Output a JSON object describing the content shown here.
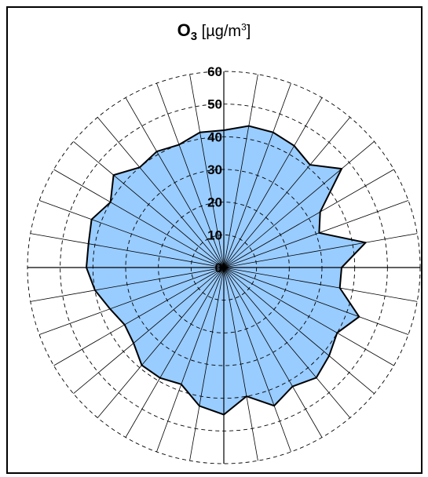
{
  "chart_data": {
    "type": "radar",
    "title": {
      "pollutant": "O",
      "subscript": "3",
      "unit_prefix": "[µg/m",
      "unit_power": "3",
      "unit_suffix": "]"
    },
    "rlim": [
      0,
      60
    ],
    "r_ticks": [
      0,
      10,
      20,
      30,
      40,
      50,
      60
    ],
    "tick_labels": [
      "0",
      "10",
      "20",
      "30",
      "40",
      "50",
      "60"
    ],
    "directions": 36,
    "grid": "dashed-rings",
    "values": [
      42,
      44,
      44,
      43,
      41,
      47,
      34,
      31,
      44,
      36,
      36,
      44,
      40,
      42,
      44,
      42,
      45,
      40,
      45,
      43,
      38,
      39,
      39,
      36,
      35,
      37,
      40,
      42,
      42,
      43,
      40,
      44,
      40,
      41,
      40,
      42
    ],
    "colors": {
      "fill": "#99ccff",
      "line": "#000000",
      "grid": "#000000",
      "frame": "#000000"
    }
  }
}
